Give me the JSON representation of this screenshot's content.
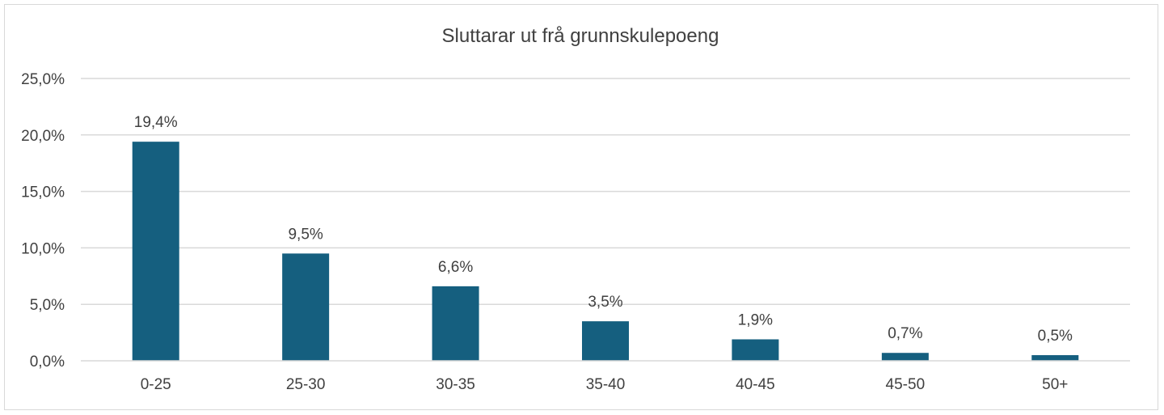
{
  "chart_data": {
    "type": "bar",
    "title": "Sluttarar ut frå grunnskulepoeng",
    "xlabel": "",
    "ylabel": "",
    "categories": [
      "0-25",
      "25-30",
      "30-35",
      "35-40",
      "40-45",
      "45-50",
      "50+"
    ],
    "values": [
      19.4,
      9.5,
      6.6,
      3.5,
      1.9,
      0.7,
      0.5
    ],
    "data_labels": [
      "19,4%",
      "9,5%",
      "6,6%",
      "3,5%",
      "1,9%",
      "0,7%",
      "0,5%"
    ],
    "ylim": [
      0,
      25
    ],
    "yticks": [
      0,
      5,
      10,
      15,
      20,
      25
    ],
    "ytick_labels": [
      "0,0%",
      "5,0%",
      "10,0%",
      "15,0%",
      "20,0%",
      "25,0%"
    ],
    "grid": true,
    "legend": "none",
    "bar_color": "#155f7f",
    "grid_color": "#d9d9d9"
  }
}
